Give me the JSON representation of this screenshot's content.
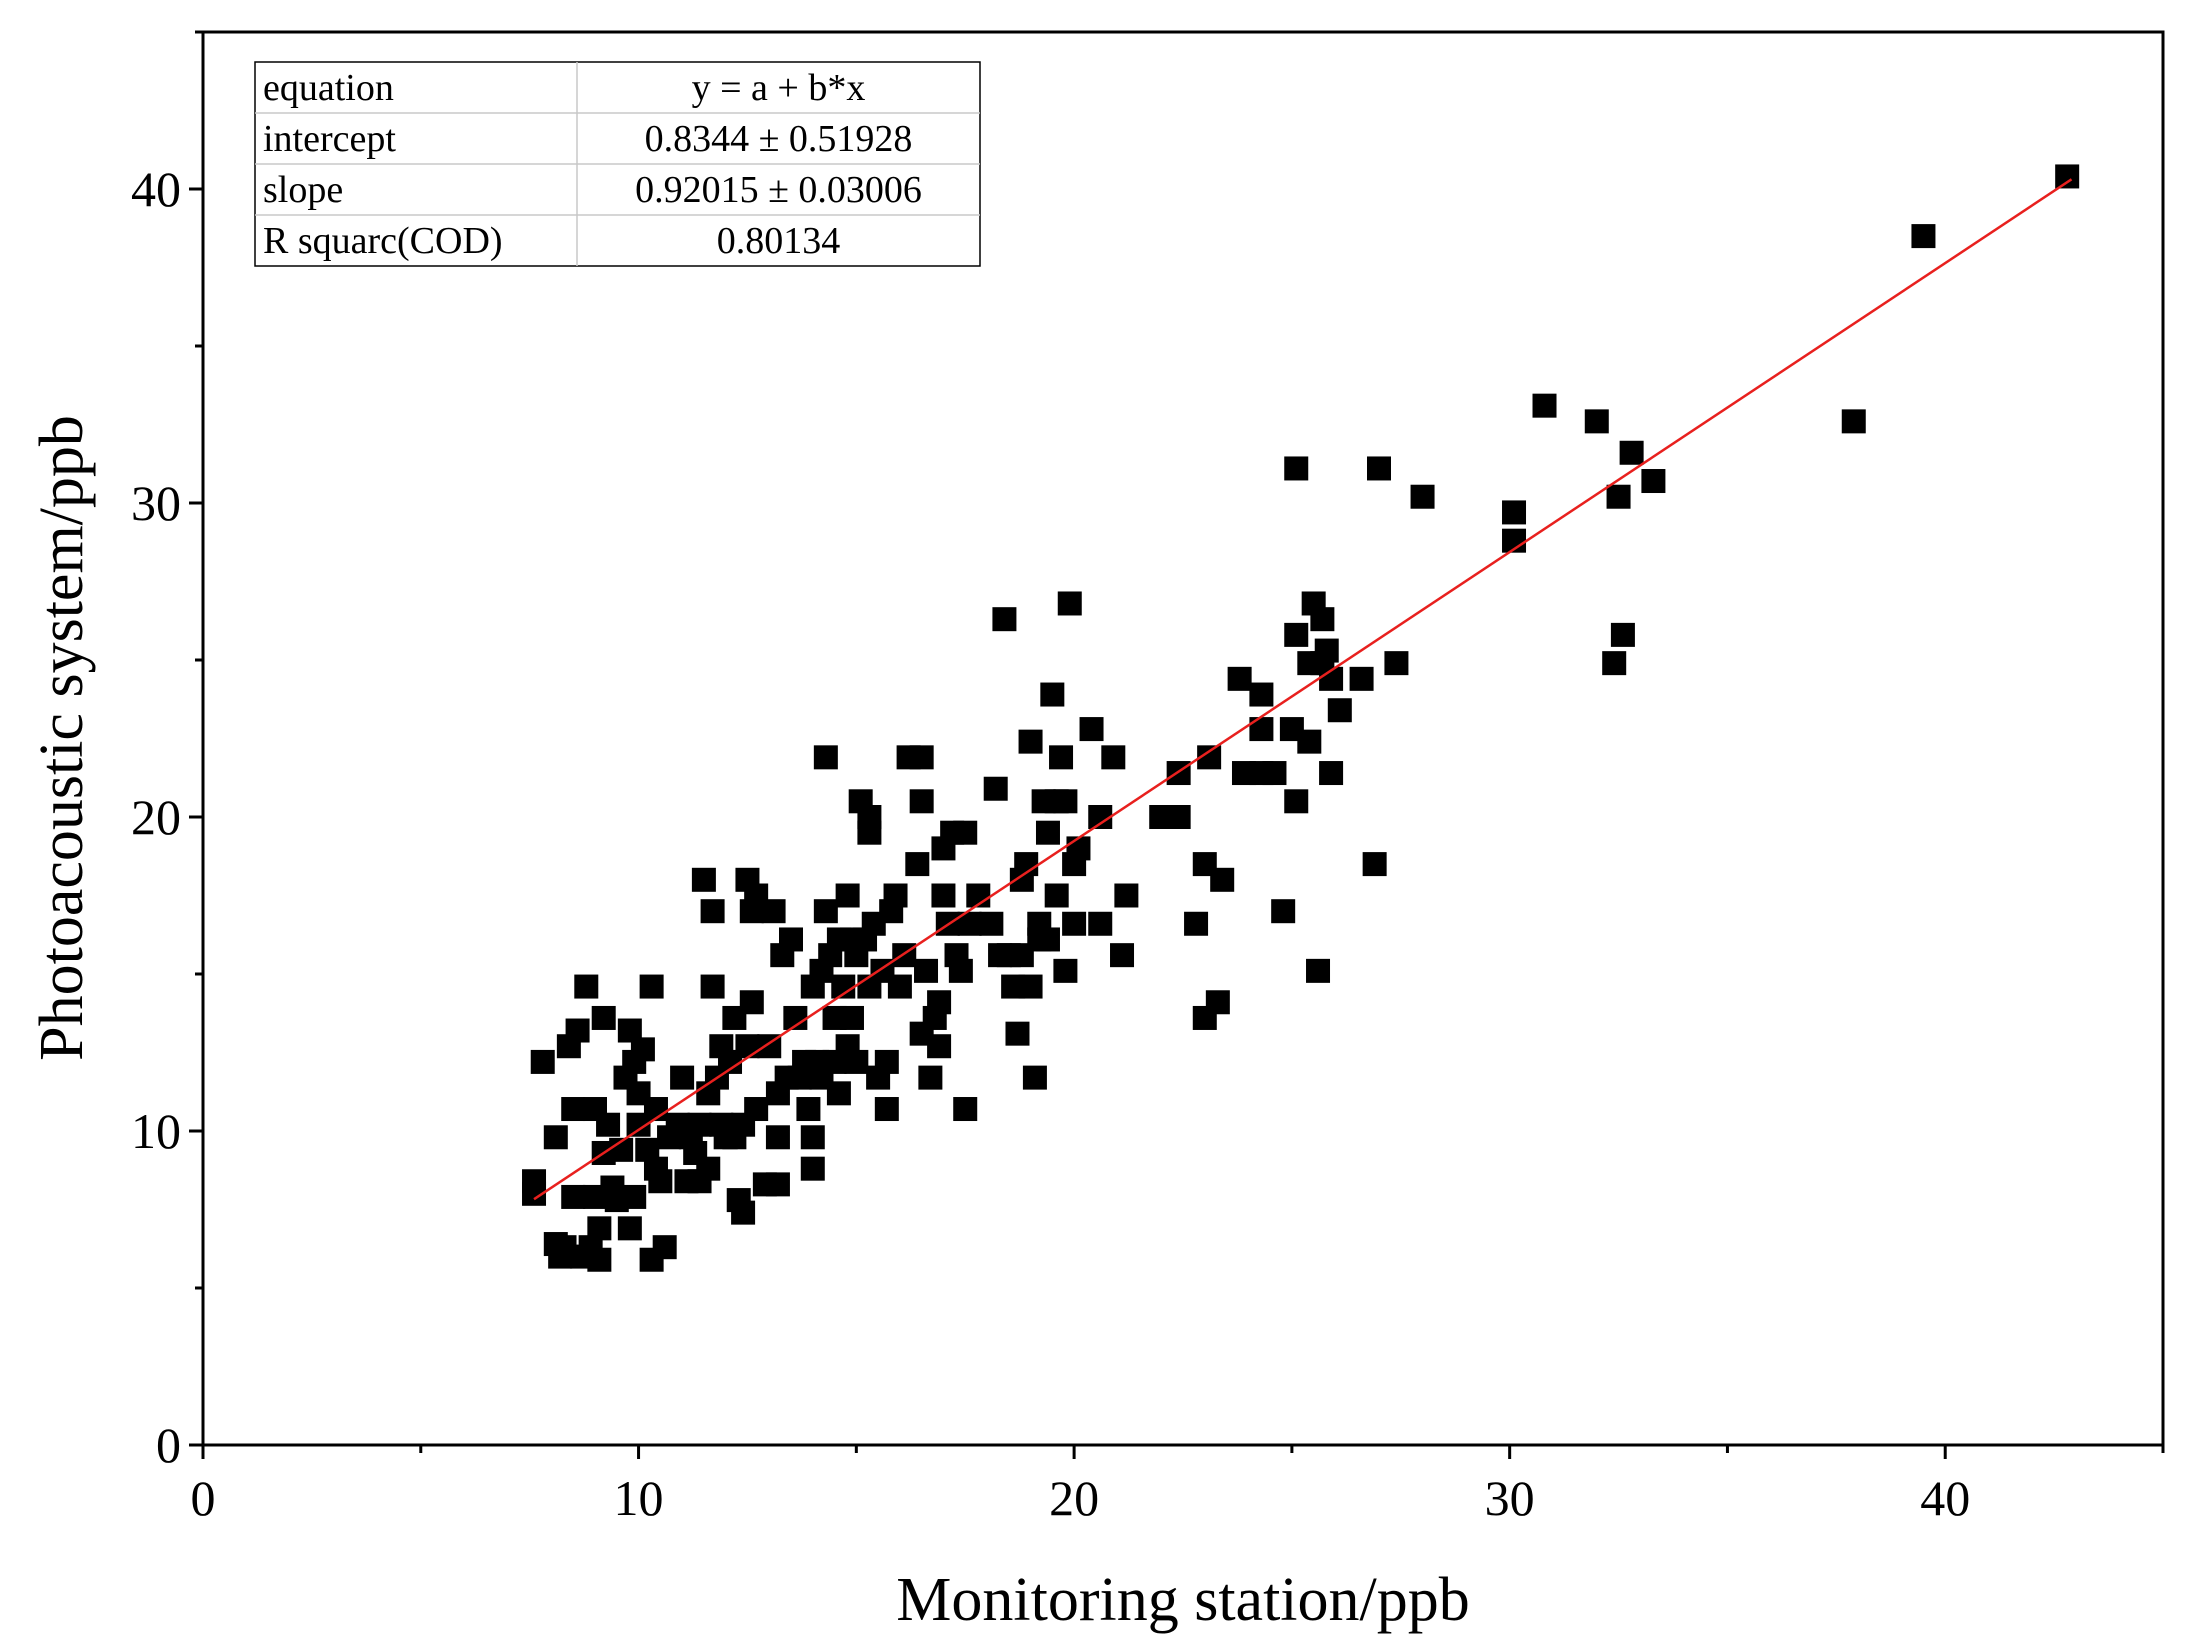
{
  "chart_data": {
    "type": "scatter",
    "title": "",
    "xlabel": "Monitoring station/ppb",
    "ylabel": "Photoacoustic system/ppb",
    "xlim": [
      0,
      45
    ],
    "ylim": [
      0,
      45
    ],
    "x_ticks": [
      0,
      10,
      20,
      30,
      40
    ],
    "y_ticks": [
      0,
      10,
      20,
      30,
      40
    ],
    "x_tick_labels": [
      "0",
      "10",
      "20",
      "30",
      "40"
    ],
    "y_tick_labels": [
      "0",
      "10",
      "20",
      "30",
      "40"
    ],
    "grid": false,
    "marker": "square",
    "marker_color": "#000000",
    "fit_color": "#e8201e",
    "fit_line": {
      "a": 0.8344,
      "b": 0.92015,
      "x_range": [
        7.6,
        42.9
      ]
    },
    "fit_table": [
      [
        "equation",
        "y = a + b*x"
      ],
      [
        "intercept",
        "0.8344 ± 0.51928"
      ],
      [
        "slope",
        "0.92015 ± 0.03006"
      ],
      [
        "R squarc(COD)",
        "0.80134"
      ]
    ],
    "points": [
      [
        7.6,
        8.0
      ],
      [
        7.6,
        8.4
      ],
      [
        7.8,
        12.2
      ],
      [
        8.1,
        6.4
      ],
      [
        8.1,
        9.8
      ],
      [
        8.2,
        6.0
      ],
      [
        8.3,
        6.3
      ],
      [
        8.4,
        12.7
      ],
      [
        8.5,
        10.7
      ],
      [
        8.5,
        7.9
      ],
      [
        8.6,
        13.2
      ],
      [
        8.7,
        6.0
      ],
      [
        8.8,
        14.6
      ],
      [
        8.9,
        6.3
      ],
      [
        9.0,
        10.7
      ],
      [
        9.0,
        7.9
      ],
      [
        9.1,
        6.9
      ],
      [
        9.1,
        5.9
      ],
      [
        9.2,
        13.6
      ],
      [
        9.2,
        9.3
      ],
      [
        9.3,
        10.2
      ],
      [
        9.4,
        8.2
      ],
      [
        9.5,
        7.8
      ],
      [
        9.6,
        9.4
      ],
      [
        9.7,
        11.7
      ],
      [
        9.8,
        13.2
      ],
      [
        9.8,
        6.9
      ],
      [
        9.9,
        12.2
      ],
      [
        9.9,
        7.9
      ],
      [
        10.0,
        10.2
      ],
      [
        10.0,
        11.2
      ],
      [
        10.1,
        12.6
      ],
      [
        10.2,
        9.4
      ],
      [
        10.3,
        5.9
      ],
      [
        10.3,
        14.6
      ],
      [
        10.4,
        8.8
      ],
      [
        10.4,
        10.7
      ],
      [
        10.5,
        8.4
      ],
      [
        10.6,
        6.3
      ],
      [
        10.7,
        9.8
      ],
      [
        10.9,
        10.2
      ],
      [
        11.0,
        11.7
      ],
      [
        11.1,
        8.4
      ],
      [
        11.2,
        9.8
      ],
      [
        11.3,
        9.3
      ],
      [
        11.4,
        8.4
      ],
      [
        11.4,
        10.2
      ],
      [
        11.5,
        18.0
      ],
      [
        11.6,
        8.8
      ],
      [
        11.6,
        11.2
      ],
      [
        11.7,
        17.0
      ],
      [
        11.7,
        14.6
      ],
      [
        11.8,
        11.7
      ],
      [
        11.9,
        10.2
      ],
      [
        11.9,
        12.7
      ],
      [
        12.0,
        9.8
      ],
      [
        12.1,
        12.2
      ],
      [
        12.2,
        9.8
      ],
      [
        12.2,
        13.6
      ],
      [
        12.3,
        7.8
      ],
      [
        12.4,
        7.4
      ],
      [
        12.4,
        10.2
      ],
      [
        12.5,
        12.7
      ],
      [
        12.5,
        18.0
      ],
      [
        12.6,
        14.1
      ],
      [
        12.6,
        17.0
      ],
      [
        12.7,
        17.5
      ],
      [
        12.7,
        10.7
      ],
      [
        12.9,
        8.3
      ],
      [
        13.0,
        12.7
      ],
      [
        13.1,
        17.0
      ],
      [
        13.2,
        9.8
      ],
      [
        13.2,
        11.2
      ],
      [
        13.2,
        8.3
      ],
      [
        13.3,
        15.6
      ],
      [
        13.4,
        11.7
      ],
      [
        13.5,
        16.1
      ],
      [
        13.6,
        13.6
      ],
      [
        13.7,
        11.7
      ],
      [
        13.8,
        12.2
      ],
      [
        13.9,
        10.7
      ],
      [
        14.0,
        8.8
      ],
      [
        14.0,
        14.6
      ],
      [
        14.0,
        9.8
      ],
      [
        14.1,
        12.2
      ],
      [
        14.2,
        11.7
      ],
      [
        14.2,
        15.1
      ],
      [
        14.3,
        21.9
      ],
      [
        14.3,
        17.0
      ],
      [
        14.4,
        15.6
      ],
      [
        14.5,
        13.6
      ],
      [
        14.5,
        12.2
      ],
      [
        14.6,
        16.1
      ],
      [
        14.6,
        11.2
      ],
      [
        14.7,
        14.6
      ],
      [
        14.8,
        17.5
      ],
      [
        14.8,
        12.7
      ],
      [
        14.9,
        16.1
      ],
      [
        14.9,
        13.6
      ],
      [
        15.0,
        12.2
      ],
      [
        15.0,
        15.6
      ],
      [
        15.1,
        20.5
      ],
      [
        15.2,
        16.1
      ],
      [
        15.3,
        14.6
      ],
      [
        15.3,
        20.0
      ],
      [
        15.3,
        19.5
      ],
      [
        15.4,
        16.6
      ],
      [
        15.5,
        11.7
      ],
      [
        15.6,
        15.1
      ],
      [
        15.7,
        12.2
      ],
      [
        15.7,
        10.7
      ],
      [
        15.8,
        17.0
      ],
      [
        15.9,
        17.5
      ],
      [
        16.0,
        14.6
      ],
      [
        16.1,
        15.6
      ],
      [
        16.2,
        21.9
      ],
      [
        16.4,
        18.5
      ],
      [
        16.5,
        21.9
      ],
      [
        16.5,
        13.1
      ],
      [
        16.5,
        20.5
      ],
      [
        16.6,
        15.1
      ],
      [
        16.7,
        11.7
      ],
      [
        16.8,
        13.6
      ],
      [
        16.9,
        12.7
      ],
      [
        16.9,
        14.1
      ],
      [
        17.0,
        19.0
      ],
      [
        17.0,
        17.5
      ],
      [
        17.1,
        16.6
      ],
      [
        17.2,
        19.5
      ],
      [
        17.3,
        15.6
      ],
      [
        17.4,
        15.1
      ],
      [
        17.5,
        19.5
      ],
      [
        17.5,
        10.7
      ],
      [
        17.6,
        16.6
      ],
      [
        17.8,
        17.5
      ],
      [
        18.1,
        16.6
      ],
      [
        18.2,
        20.9
      ],
      [
        18.3,
        15.6
      ],
      [
        18.4,
        26.3
      ],
      [
        18.5,
        15.6
      ],
      [
        18.6,
        14.6
      ],
      [
        18.7,
        13.1
      ],
      [
        18.8,
        15.6
      ],
      [
        18.8,
        18.0
      ],
      [
        18.9,
        18.5
      ],
      [
        19.0,
        22.4
      ],
      [
        19.0,
        14.6
      ],
      [
        19.1,
        11.7
      ],
      [
        19.2,
        16.1
      ],
      [
        19.2,
        16.6
      ],
      [
        19.3,
        20.5
      ],
      [
        19.4,
        19.5
      ],
      [
        19.4,
        16.1
      ],
      [
        19.5,
        23.9
      ],
      [
        19.6,
        20.5
      ],
      [
        19.6,
        17.5
      ],
      [
        19.7,
        21.9
      ],
      [
        19.8,
        20.5
      ],
      [
        19.8,
        15.1
      ],
      [
        19.9,
        26.8
      ],
      [
        20.0,
        16.6
      ],
      [
        20.0,
        18.5
      ],
      [
        20.1,
        19.0
      ],
      [
        20.4,
        22.8
      ],
      [
        20.6,
        20.0
      ],
      [
        20.6,
        16.6
      ],
      [
        20.9,
        21.9
      ],
      [
        21.1,
        15.6
      ],
      [
        21.2,
        17.5
      ],
      [
        22.0,
        20.0
      ],
      [
        22.4,
        20.0
      ],
      [
        22.4,
        21.4
      ],
      [
        22.8,
        16.6
      ],
      [
        23.0,
        13.6
      ],
      [
        23.0,
        18.5
      ],
      [
        23.1,
        21.9
      ],
      [
        23.3,
        14.1
      ],
      [
        23.4,
        18.0
      ],
      [
        23.8,
        24.4
      ],
      [
        23.9,
        21.4
      ],
      [
        24.3,
        22.8
      ],
      [
        24.3,
        23.9
      ],
      [
        24.3,
        21.4
      ],
      [
        24.6,
        21.4
      ],
      [
        24.8,
        17.0
      ],
      [
        25.0,
        22.8
      ],
      [
        25.1,
        31.1
      ],
      [
        25.1,
        20.5
      ],
      [
        25.1,
        25.8
      ],
      [
        25.4,
        22.4
      ],
      [
        25.4,
        24.9
      ],
      [
        25.5,
        26.8
      ],
      [
        25.6,
        15.1
      ],
      [
        25.7,
        26.3
      ],
      [
        25.7,
        24.9
      ],
      [
        25.8,
        25.3
      ],
      [
        25.9,
        24.4
      ],
      [
        25.9,
        21.4
      ],
      [
        26.1,
        23.4
      ],
      [
        26.6,
        24.4
      ],
      [
        26.9,
        18.5
      ],
      [
        27.0,
        31.1
      ],
      [
        27.4,
        24.9
      ],
      [
        28.0,
        30.2
      ],
      [
        30.1,
        28.8
      ],
      [
        30.1,
        29.7
      ],
      [
        30.8,
        33.1
      ],
      [
        32.0,
        32.6
      ],
      [
        32.4,
        24.9
      ],
      [
        32.5,
        30.2
      ],
      [
        32.6,
        25.8
      ],
      [
        32.8,
        31.6
      ],
      [
        33.3,
        30.7
      ],
      [
        37.9,
        32.6
      ],
      [
        39.5,
        38.5
      ],
      [
        42.8,
        40.4
      ]
    ]
  }
}
